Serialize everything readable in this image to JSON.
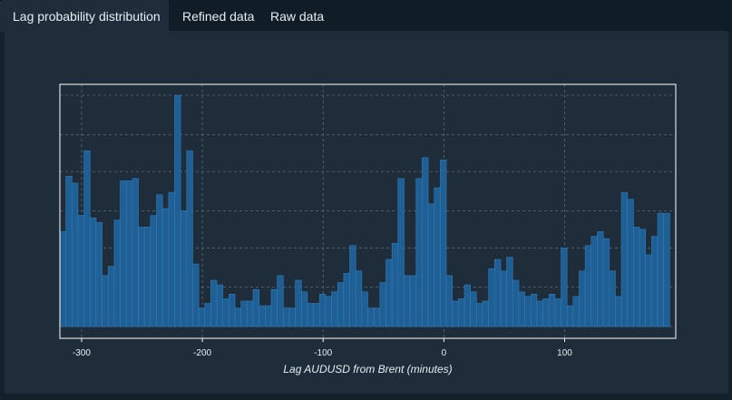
{
  "tabs": [
    {
      "label": "Lag probability distribution",
      "active": true
    },
    {
      "label": "Refined data",
      "active": false
    },
    {
      "label": "Raw data",
      "active": false
    }
  ],
  "colors": {
    "bar_fill": "#1f5f93",
    "bar_stroke": "#2d7cbd",
    "grid": "#5c6a75",
    "frame": "#ffffff"
  },
  "chart_data": {
    "type": "bar",
    "xlabel": "Lag AUDUSD from Brent (minutes)",
    "ylabel": "",
    "xlim": [
      -318,
      192
    ],
    "ylim": [
      0,
      1
    ],
    "grid": true,
    "bin_start": -318,
    "bin_width": 5,
    "x_ticks": [
      -300,
      -200,
      -100,
      0,
      100
    ],
    "values": [
      0.41,
      0.65,
      0.62,
      0.48,
      0.76,
      0.47,
      0.45,
      0.22,
      0.26,
      0.46,
      0.63,
      0.63,
      0.64,
      0.43,
      0.43,
      0.48,
      0.57,
      0.51,
      0.58,
      1.0,
      0.5,
      0.76,
      0.27,
      0.08,
      0.1,
      0.2,
      0.18,
      0.12,
      0.14,
      0.08,
      0.11,
      0.11,
      0.16,
      0.09,
      0.09,
      0.16,
      0.22,
      0.08,
      0.08,
      0.2,
      0.15,
      0.1,
      0.1,
      0.14,
      0.13,
      0.15,
      0.19,
      0.23,
      0.35,
      0.24,
      0.15,
      0.08,
      0.08,
      0.19,
      0.29,
      0.36,
      0.64,
      0.22,
      0.22,
      0.64,
      0.73,
      0.53,
      0.6,
      0.72,
      0.22,
      0.11,
      0.12,
      0.18,
      0.15,
      0.1,
      0.11,
      0.25,
      0.29,
      0.24,
      0.3,
      0.2,
      0.15,
      0.13,
      0.14,
      0.11,
      0.12,
      0.14,
      0.12,
      0.34,
      0.09,
      0.13,
      0.24,
      0.35,
      0.39,
      0.41,
      0.38,
      0.24,
      0.13,
      0.58,
      0.55,
      0.43,
      0.42,
      0.31,
      0.39,
      0.49,
      0.49
    ]
  }
}
